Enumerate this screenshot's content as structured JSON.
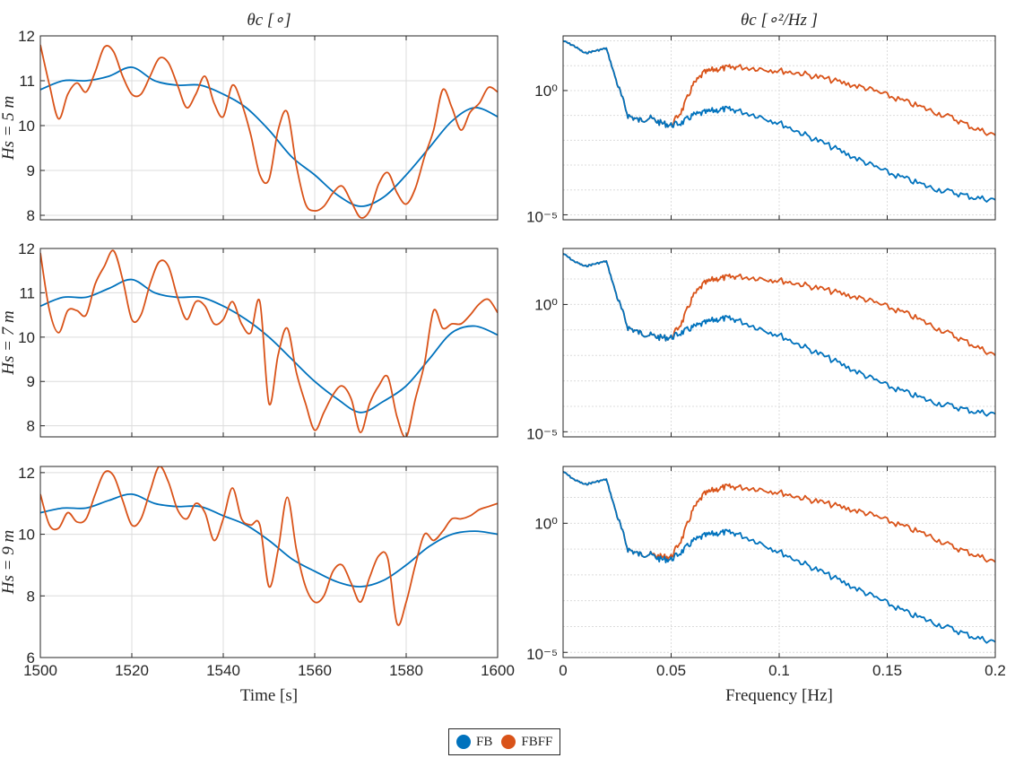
{
  "chart_data": [
    {
      "type": "line",
      "panel": "time",
      "row": 0,
      "title": "θc [∘]",
      "xlabel": "",
      "ylabel": "Hs = 5 m",
      "xlim": [
        1500,
        1600
      ],
      "ylim": [
        7.9,
        12
      ],
      "xticks": [
        1500,
        1520,
        1540,
        1560,
        1580,
        1600
      ],
      "yticks": [
        8,
        9,
        10,
        11,
        12
      ],
      "show_xticklabels": false,
      "grid": true,
      "series": [
        {
          "name": "FB",
          "x": [
            1500,
            1505,
            1510,
            1515,
            1520,
            1525,
            1530,
            1535,
            1540,
            1545,
            1550,
            1555,
            1560,
            1565,
            1570,
            1575,
            1580,
            1585,
            1590,
            1595,
            1600
          ],
          "values": [
            10.8,
            11.0,
            11.0,
            11.1,
            11.3,
            11.0,
            10.9,
            10.9,
            10.7,
            10.4,
            9.9,
            9.3,
            8.9,
            8.45,
            8.2,
            8.4,
            8.9,
            9.5,
            10.1,
            10.4,
            10.2
          ]
        },
        {
          "name": "FBFF",
          "x": [
            1500,
            1502,
            1504,
            1506,
            1508,
            1510,
            1512,
            1514,
            1516,
            1518,
            1520,
            1522,
            1524,
            1526,
            1528,
            1530,
            1532,
            1534,
            1536,
            1538,
            1540,
            1542,
            1544,
            1546,
            1548,
            1550,
            1552,
            1554,
            1556,
            1558,
            1560,
            1562,
            1564,
            1566,
            1568,
            1570,
            1572,
            1574,
            1576,
            1578,
            1580,
            1582,
            1584,
            1586,
            1588,
            1590,
            1592,
            1594,
            1596,
            1598,
            1600
          ],
          "values": [
            11.8,
            10.9,
            10.15,
            10.7,
            10.95,
            10.75,
            11.2,
            11.75,
            11.65,
            11.1,
            10.7,
            10.7,
            11.1,
            11.5,
            11.4,
            10.9,
            10.4,
            10.7,
            11.1,
            10.5,
            10.2,
            10.9,
            10.5,
            9.8,
            8.9,
            8.8,
            9.9,
            10.3,
            9.1,
            8.25,
            8.1,
            8.2,
            8.5,
            8.65,
            8.3,
            7.95,
            8.1,
            8.7,
            8.95,
            8.5,
            8.25,
            8.6,
            9.3,
            9.9,
            10.8,
            10.4,
            9.9,
            10.3,
            10.5,
            10.85,
            10.75
          ]
        }
      ]
    },
    {
      "type": "line",
      "panel": "time",
      "row": 1,
      "title": "",
      "xlabel": "",
      "ylabel": "Hs = 7 m",
      "xlim": [
        1500,
        1600
      ],
      "ylim": [
        7.75,
        12
      ],
      "xticks": [
        1500,
        1520,
        1540,
        1560,
        1580,
        1600
      ],
      "yticks": [
        8,
        9,
        10,
        11,
        12
      ],
      "show_xticklabels": false,
      "grid": true,
      "series": [
        {
          "name": "FB",
          "x": [
            1500,
            1505,
            1510,
            1515,
            1520,
            1525,
            1530,
            1535,
            1540,
            1545,
            1550,
            1555,
            1560,
            1565,
            1570,
            1575,
            1580,
            1585,
            1590,
            1595,
            1600
          ],
          "values": [
            10.7,
            10.9,
            10.9,
            11.1,
            11.3,
            11.0,
            10.9,
            10.9,
            10.7,
            10.4,
            10.0,
            9.5,
            9.0,
            8.6,
            8.3,
            8.55,
            8.9,
            9.5,
            10.1,
            10.25,
            10.05
          ]
        },
        {
          "name": "FBFF",
          "x": [
            1500,
            1502,
            1504,
            1506,
            1508,
            1510,
            1512,
            1514,
            1516,
            1518,
            1520,
            1522,
            1524,
            1526,
            1528,
            1530,
            1532,
            1534,
            1536,
            1538,
            1540,
            1542,
            1544,
            1546,
            1548,
            1550,
            1552,
            1554,
            1556,
            1558,
            1560,
            1562,
            1564,
            1566,
            1568,
            1570,
            1572,
            1574,
            1576,
            1578,
            1580,
            1582,
            1584,
            1586,
            1588,
            1590,
            1592,
            1594,
            1596,
            1598,
            1600
          ],
          "values": [
            11.9,
            10.6,
            10.1,
            10.6,
            10.6,
            10.5,
            11.2,
            11.6,
            11.95,
            11.3,
            10.4,
            10.5,
            11.2,
            11.7,
            11.6,
            10.9,
            10.4,
            10.8,
            10.7,
            10.3,
            10.4,
            10.8,
            10.3,
            10.1,
            10.8,
            8.5,
            9.6,
            10.2,
            9.2,
            8.5,
            7.9,
            8.3,
            8.7,
            8.9,
            8.6,
            7.85,
            8.5,
            8.9,
            9.1,
            8.2,
            7.75,
            8.6,
            9.4,
            10.6,
            10.2,
            10.3,
            10.3,
            10.5,
            10.75,
            10.85,
            10.55
          ]
        }
      ]
    },
    {
      "type": "line",
      "panel": "time",
      "row": 2,
      "title": "",
      "xlabel": "Time [s]",
      "ylabel": "Hs = 9 m",
      "xlim": [
        1500,
        1600
      ],
      "ylim": [
        6,
        12.2
      ],
      "xticks": [
        1500,
        1520,
        1540,
        1560,
        1580,
        1600
      ],
      "yticks": [
        6,
        8,
        10,
        12
      ],
      "show_xticklabels": true,
      "grid": true,
      "series": [
        {
          "name": "FB",
          "x": [
            1500,
            1505,
            1510,
            1515,
            1520,
            1525,
            1530,
            1535,
            1540,
            1545,
            1550,
            1555,
            1560,
            1565,
            1570,
            1575,
            1580,
            1585,
            1590,
            1595,
            1600
          ],
          "values": [
            10.7,
            10.85,
            10.85,
            11.1,
            11.3,
            11.0,
            10.9,
            10.9,
            10.6,
            10.3,
            9.8,
            9.2,
            8.8,
            8.45,
            8.3,
            8.5,
            9.0,
            9.6,
            10.0,
            10.1,
            10.0
          ]
        },
        {
          "name": "FBFF",
          "x": [
            1500,
            1502,
            1504,
            1506,
            1508,
            1510,
            1512,
            1514,
            1516,
            1518,
            1520,
            1522,
            1524,
            1526,
            1528,
            1530,
            1532,
            1534,
            1536,
            1538,
            1540,
            1542,
            1544,
            1546,
            1548,
            1550,
            1552,
            1554,
            1556,
            1558,
            1560,
            1562,
            1564,
            1566,
            1568,
            1570,
            1572,
            1574,
            1576,
            1578,
            1580,
            1582,
            1584,
            1586,
            1588,
            1590,
            1592,
            1594,
            1596,
            1598,
            1600
          ],
          "values": [
            11.3,
            10.3,
            10.2,
            10.7,
            10.4,
            10.5,
            11.3,
            12.0,
            11.9,
            11.1,
            10.3,
            10.5,
            11.4,
            12.2,
            11.7,
            10.8,
            10.5,
            11.0,
            10.7,
            9.8,
            10.5,
            11.5,
            10.5,
            10.3,
            10.3,
            8.3,
            9.5,
            11.2,
            9.5,
            8.3,
            7.8,
            8.0,
            8.8,
            9.0,
            8.4,
            7.8,
            8.6,
            9.3,
            9.2,
            7.1,
            7.8,
            9.0,
            10.0,
            9.8,
            10.1,
            10.5,
            10.5,
            10.6,
            10.8,
            10.9,
            11.0
          ]
        }
      ]
    },
    {
      "type": "line",
      "panel": "psd",
      "row": 0,
      "title": "θc [∘²/Hz ]",
      "xlabel": "",
      "ylabel": "",
      "xlim": [
        0,
        0.2
      ],
      "ylog": true,
      "ylim_log10": [
        -5.2,
        2.2
      ],
      "xticks": [
        0,
        0.05,
        0.1,
        0.15,
        0.2
      ],
      "ytick_labels": [
        "10⁰",
        "10⁻⁵"
      ],
      "show_xticklabels": false,
      "grid": true,
      "series": [
        {
          "name": "FB",
          "x": [
            0,
            0.005,
            0.01,
            0.015,
            0.02,
            0.025,
            0.03,
            0.035,
            0.04,
            0.045,
            0.05,
            0.055,
            0.06,
            0.065,
            0.07,
            0.075,
            0.08,
            0.09,
            0.1,
            0.11,
            0.12,
            0.13,
            0.14,
            0.15,
            0.16,
            0.17,
            0.18,
            0.19,
            0.2
          ],
          "log10_values": [
            2.0,
            1.8,
            1.5,
            1.6,
            1.7,
            0.3,
            -1.0,
            -1.2,
            -1.1,
            -1.3,
            -1.4,
            -1.3,
            -1.0,
            -0.9,
            -0.8,
            -0.75,
            -0.8,
            -1.0,
            -1.3,
            -1.7,
            -2.1,
            -2.5,
            -2.9,
            -3.3,
            -3.6,
            -3.9,
            -4.1,
            -4.3,
            -4.4
          ]
        },
        {
          "name": "FBFF",
          "x": [
            0,
            0.005,
            0.01,
            0.015,
            0.02,
            0.025,
            0.03,
            0.035,
            0.04,
            0.045,
            0.05,
            0.055,
            0.06,
            0.065,
            0.07,
            0.075,
            0.08,
            0.09,
            0.1,
            0.11,
            0.12,
            0.13,
            0.14,
            0.15,
            0.16,
            0.17,
            0.18,
            0.19,
            0.2
          ],
          "log10_values": [
            2.0,
            1.8,
            1.5,
            1.6,
            1.7,
            0.3,
            -1.0,
            -1.2,
            -1.1,
            -1.3,
            -1.4,
            -0.8,
            0.2,
            0.7,
            0.85,
            0.9,
            0.95,
            0.9,
            0.8,
            0.7,
            0.5,
            0.3,
            0.1,
            -0.2,
            -0.5,
            -0.8,
            -1.1,
            -1.5,
            -1.8
          ]
        }
      ]
    },
    {
      "type": "line",
      "panel": "psd",
      "row": 1,
      "title": "",
      "xlabel": "",
      "ylabel": "",
      "xlim": [
        0,
        0.2
      ],
      "ylog": true,
      "ylim_log10": [
        -5.2,
        2.2
      ],
      "xticks": [
        0,
        0.05,
        0.1,
        0.15,
        0.2
      ],
      "ytick_labels": [
        "10⁰",
        "10⁻⁵"
      ],
      "show_xticklabels": false,
      "grid": true,
      "series": [
        {
          "name": "FB",
          "x": [
            0,
            0.005,
            0.01,
            0.015,
            0.02,
            0.025,
            0.03,
            0.035,
            0.04,
            0.045,
            0.05,
            0.055,
            0.06,
            0.065,
            0.07,
            0.075,
            0.08,
            0.09,
            0.1,
            0.11,
            0.12,
            0.13,
            0.14,
            0.15,
            0.16,
            0.17,
            0.18,
            0.19,
            0.2
          ],
          "log10_values": [
            2.0,
            1.7,
            1.5,
            1.6,
            1.7,
            0.3,
            -0.9,
            -1.1,
            -1.2,
            -1.3,
            -1.3,
            -1.1,
            -0.9,
            -0.75,
            -0.6,
            -0.55,
            -0.6,
            -0.9,
            -1.2,
            -1.6,
            -2.0,
            -2.4,
            -2.8,
            -3.2,
            -3.5,
            -3.8,
            -4.0,
            -4.2,
            -4.3
          ]
        },
        {
          "name": "FBFF",
          "x": [
            0,
            0.005,
            0.01,
            0.015,
            0.02,
            0.025,
            0.03,
            0.035,
            0.04,
            0.045,
            0.05,
            0.055,
            0.06,
            0.065,
            0.07,
            0.075,
            0.08,
            0.09,
            0.1,
            0.11,
            0.12,
            0.13,
            0.14,
            0.15,
            0.16,
            0.17,
            0.18,
            0.19,
            0.2
          ],
          "log10_values": [
            2.0,
            1.7,
            1.5,
            1.6,
            1.7,
            0.3,
            -0.9,
            -1.1,
            -1.2,
            -1.3,
            -1.3,
            -0.7,
            0.3,
            0.8,
            1.0,
            1.05,
            1.1,
            1.05,
            0.95,
            0.8,
            0.6,
            0.4,
            0.2,
            -0.1,
            -0.4,
            -0.8,
            -1.2,
            -1.6,
            -2.0
          ]
        }
      ]
    },
    {
      "type": "line",
      "panel": "psd",
      "row": 2,
      "title": "",
      "xlabel": "Frequency [Hz]",
      "ylabel": "",
      "xlim": [
        0,
        0.2
      ],
      "ylog": true,
      "ylim_log10": [
        -5.2,
        2.2
      ],
      "xticks": [
        0,
        0.05,
        0.1,
        0.15,
        0.2
      ],
      "ytick_labels": [
        "10⁰",
        "10⁻⁵"
      ],
      "show_xticklabels": true,
      "grid": true,
      "series": [
        {
          "name": "FB",
          "x": [
            0,
            0.005,
            0.01,
            0.015,
            0.02,
            0.025,
            0.03,
            0.035,
            0.04,
            0.045,
            0.05,
            0.055,
            0.06,
            0.065,
            0.07,
            0.075,
            0.08,
            0.09,
            0.1,
            0.11,
            0.12,
            0.13,
            0.14,
            0.15,
            0.16,
            0.17,
            0.18,
            0.19,
            0.2
          ],
          "log10_values": [
            2.0,
            1.7,
            1.5,
            1.6,
            1.7,
            0.3,
            -1.0,
            -1.2,
            -1.2,
            -1.4,
            -1.4,
            -1.1,
            -0.7,
            -0.5,
            -0.4,
            -0.35,
            -0.4,
            -0.7,
            -1.1,
            -1.5,
            -1.9,
            -2.3,
            -2.7,
            -3.1,
            -3.5,
            -3.8,
            -4.1,
            -4.4,
            -4.6
          ]
        },
        {
          "name": "FBFF",
          "x": [
            0,
            0.005,
            0.01,
            0.015,
            0.02,
            0.025,
            0.03,
            0.035,
            0.04,
            0.045,
            0.05,
            0.055,
            0.06,
            0.065,
            0.07,
            0.075,
            0.08,
            0.09,
            0.1,
            0.11,
            0.12,
            0.13,
            0.14,
            0.15,
            0.16,
            0.17,
            0.18,
            0.19,
            0.2
          ],
          "log10_values": [
            2.0,
            1.7,
            1.5,
            1.6,
            1.7,
            0.3,
            -1.0,
            -1.2,
            -1.2,
            -1.3,
            -1.3,
            -0.6,
            0.5,
            1.1,
            1.3,
            1.4,
            1.4,
            1.35,
            1.2,
            1.0,
            0.8,
            0.6,
            0.4,
            0.1,
            -0.2,
            -0.5,
            -0.9,
            -1.2,
            -1.5
          ]
        }
      ]
    }
  ],
  "colors": {
    "FB": "#0072BD",
    "FBFF": "#D95319",
    "axis": "#262626",
    "grid": "#dcdcdc"
  },
  "legend": {
    "placement": "bottom-center",
    "items": [
      {
        "label": "FB"
      },
      {
        "label": "FBFF"
      }
    ]
  }
}
